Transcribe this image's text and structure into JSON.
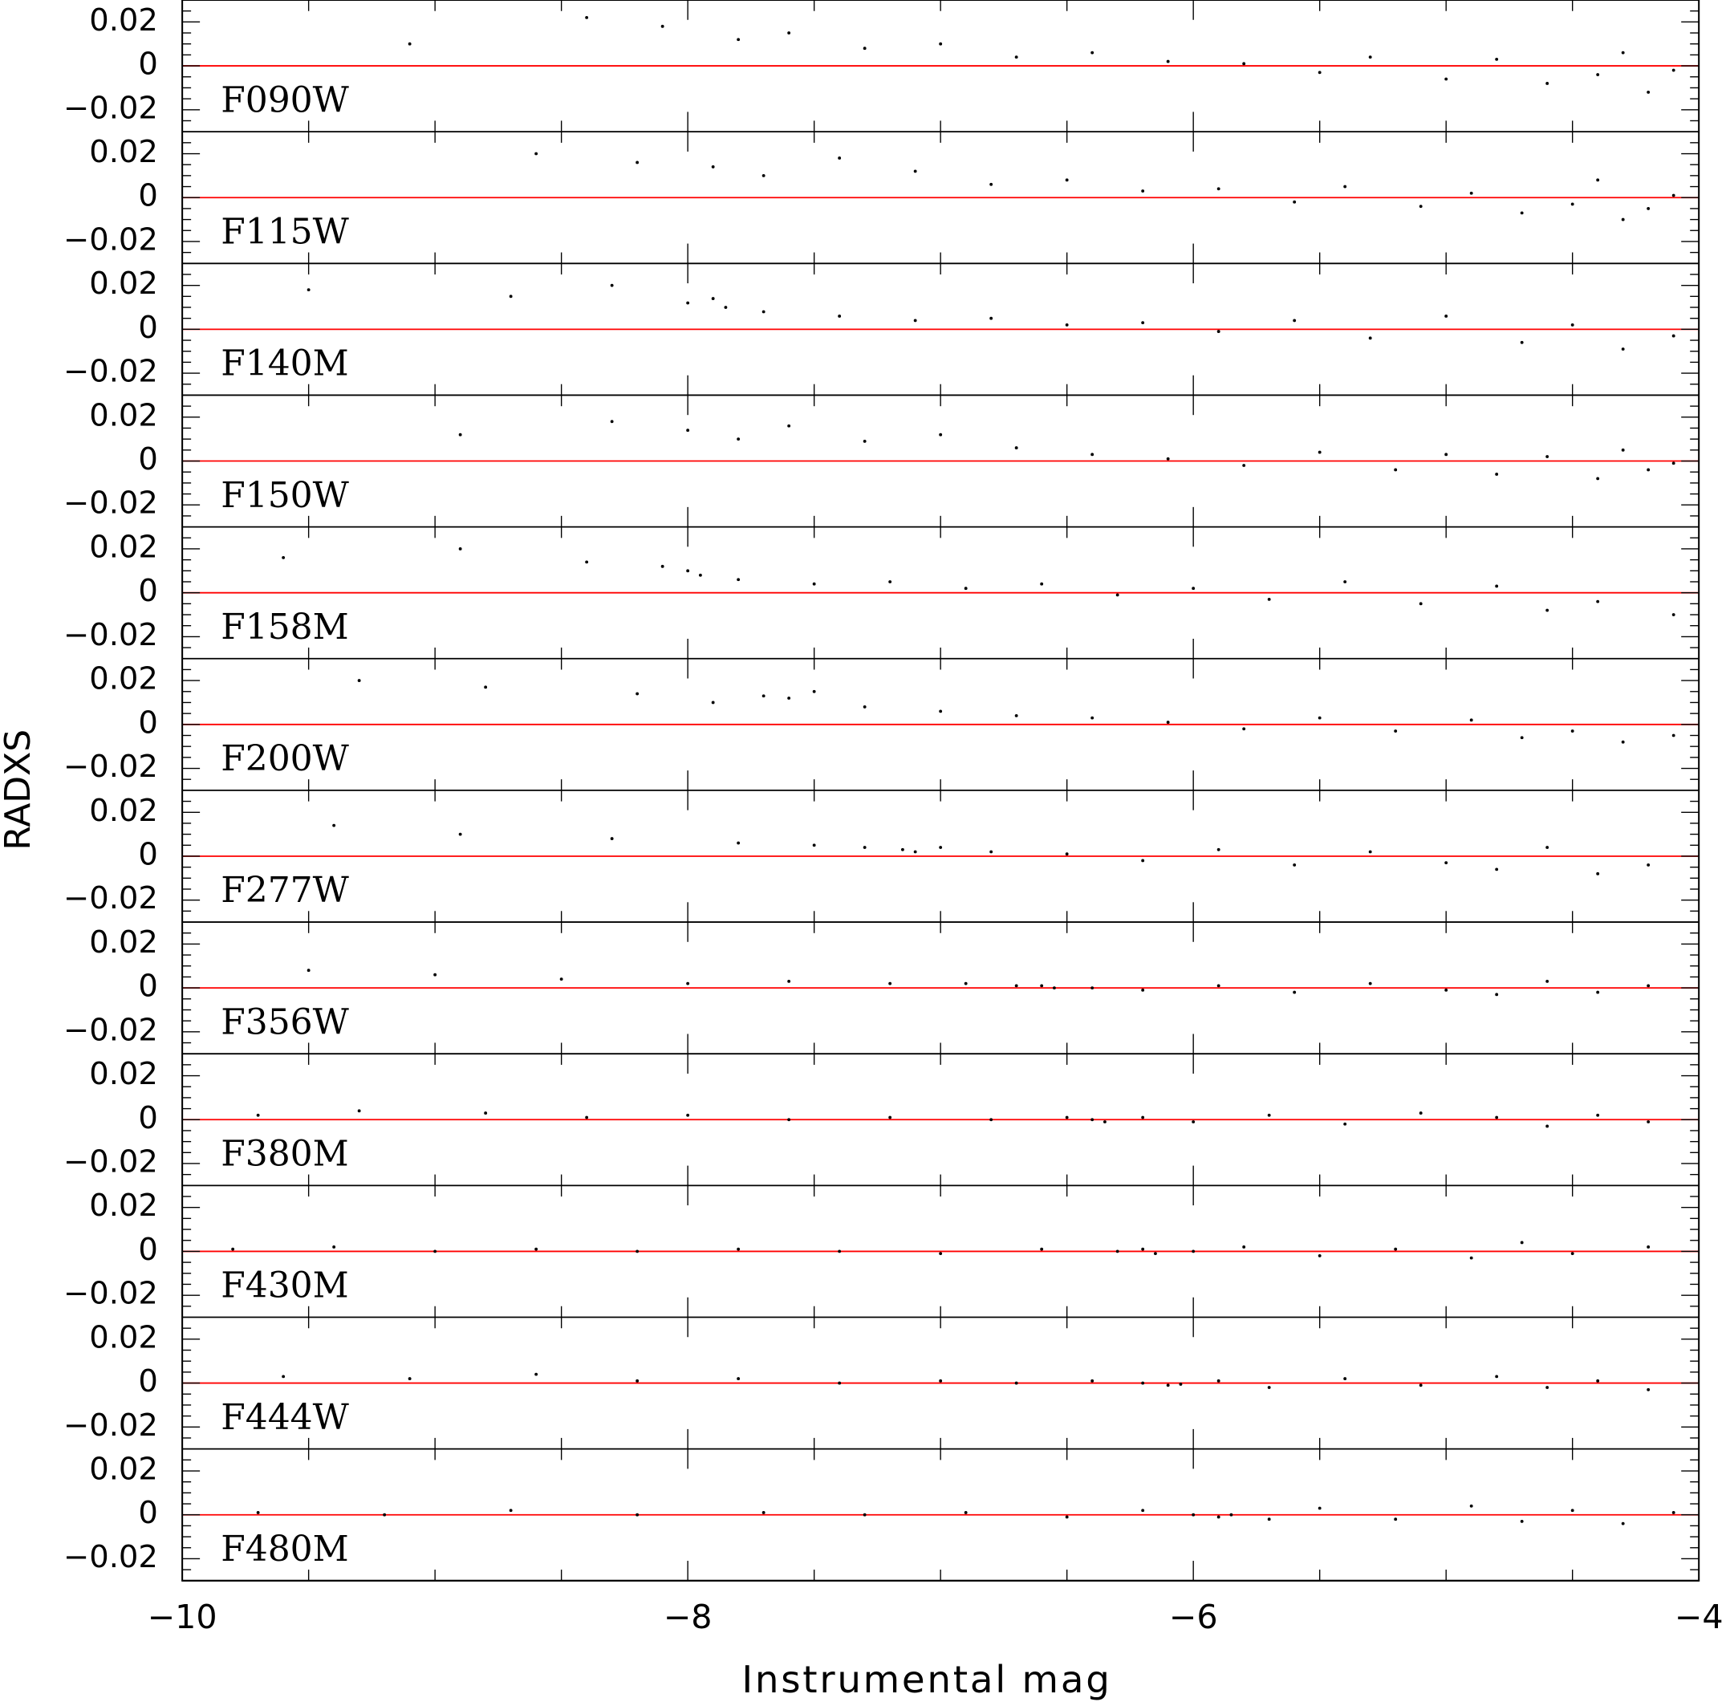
{
  "chart_data": {
    "type": "scatter",
    "x_label": "Instrumental mag",
    "y_label": "RADXS",
    "xlim": [
      -10,
      -4
    ],
    "xticks": [
      {
        "value": -10,
        "label": "−10"
      },
      {
        "value": -8,
        "label": "−8"
      },
      {
        "value": -6,
        "label": "−6"
      },
      {
        "value": -4,
        "label": "−4"
      }
    ],
    "xminorticks": [
      -9.5,
      -9,
      -8.5,
      -7.5,
      -7,
      -6.5,
      -5.5,
      -5,
      -4.5
    ],
    "ylim": [
      -0.03,
      0.03
    ],
    "yticks": [
      {
        "value": -0.02,
        "label": "−0.02"
      },
      0,
      0.02
    ],
    "yminorticks": [
      -0.025,
      -0.015,
      -0.01,
      -0.005,
      0.005,
      0.01,
      0.015,
      0.025
    ],
    "point_color": "#000000",
    "reference_line": {
      "value": 0,
      "color": "#ff0000"
    },
    "panels": [
      {
        "name": "F090W",
        "x": [
          -9.1,
          -8.4,
          -8.1,
          -7.8,
          -7.6,
          -7.3,
          -7.0,
          -6.7,
          -6.4,
          -6.1,
          -5.8,
          -5.5,
          -5.3,
          -5.0,
          -4.8,
          -4.6,
          -4.4,
          -4.3,
          -4.2,
          -4.1
        ],
        "y": [
          0.01,
          0.022,
          0.018,
          0.012,
          0.015,
          0.008,
          0.01,
          0.004,
          0.006,
          0.002,
          0.001,
          -0.003,
          0.004,
          -0.006,
          0.003,
          -0.008,
          -0.004,
          0.006,
          -0.012,
          -0.002
        ]
      },
      {
        "name": "F115W",
        "x": [
          -8.6,
          -8.2,
          -7.9,
          -7.7,
          -7.4,
          -7.1,
          -6.8,
          -6.5,
          -6.2,
          -5.9,
          -5.6,
          -5.4,
          -5.1,
          -4.9,
          -4.7,
          -4.5,
          -4.4,
          -4.3,
          -4.2,
          -4.1
        ],
        "y": [
          0.02,
          0.016,
          0.014,
          0.01,
          0.018,
          0.012,
          0.006,
          0.008,
          0.003,
          0.004,
          -0.002,
          0.005,
          -0.004,
          0.002,
          -0.007,
          -0.003,
          0.008,
          -0.01,
          -0.005,
          0.001
        ]
      },
      {
        "name": "F140M",
        "x": [
          -9.5,
          -8.7,
          -8.3,
          -8.0,
          -7.9,
          -7.85,
          -7.7,
          -7.4,
          -7.1,
          -6.8,
          -6.5,
          -6.2,
          -5.9,
          -5.6,
          -5.3,
          -5.0,
          -4.7,
          -4.5,
          -4.3,
          -4.1
        ],
        "y": [
          0.018,
          0.015,
          0.02,
          0.012,
          0.014,
          0.01,
          0.008,
          0.006,
          0.004,
          0.005,
          0.002,
          0.003,
          -0.001,
          0.004,
          -0.004,
          0.006,
          -0.006,
          0.002,
          -0.009,
          -0.003
        ]
      },
      {
        "name": "F150W",
        "x": [
          -8.9,
          -8.3,
          -8.0,
          -7.8,
          -7.6,
          -7.3,
          -7.0,
          -6.7,
          -6.4,
          -6.1,
          -5.8,
          -5.5,
          -5.2,
          -5.0,
          -4.8,
          -4.6,
          -4.4,
          -4.3,
          -4.2,
          -4.1
        ],
        "y": [
          0.012,
          0.018,
          0.014,
          0.01,
          0.016,
          0.009,
          0.012,
          0.006,
          0.003,
          0.001,
          -0.002,
          0.004,
          -0.004,
          0.003,
          -0.006,
          0.002,
          -0.008,
          0.005,
          -0.004,
          -0.001
        ]
      },
      {
        "name": "F158M",
        "x": [
          -9.6,
          -8.9,
          -8.4,
          -8.1,
          -8.0,
          -7.95,
          -7.8,
          -7.5,
          -7.2,
          -6.9,
          -6.6,
          -6.3,
          -6.0,
          -5.7,
          -5.4,
          -5.1,
          -4.8,
          -4.6,
          -4.4,
          -4.1
        ],
        "y": [
          0.016,
          0.02,
          0.014,
          0.012,
          0.01,
          0.008,
          0.006,
          0.004,
          0.005,
          0.002,
          0.004,
          -0.001,
          0.002,
          -0.003,
          0.005,
          -0.005,
          0.003,
          -0.008,
          -0.004,
          -0.01
        ]
      },
      {
        "name": "F200W",
        "x": [
          -9.3,
          -8.8,
          -8.2,
          -7.9,
          -7.7,
          -7.6,
          -7.5,
          -7.3,
          -7.0,
          -6.7,
          -6.4,
          -6.1,
          -5.8,
          -5.5,
          -5.2,
          -4.9,
          -4.7,
          -4.5,
          -4.3,
          -4.1
        ],
        "y": [
          0.02,
          0.017,
          0.014,
          0.01,
          0.013,
          0.012,
          0.015,
          0.008,
          0.006,
          0.004,
          0.003,
          0.001,
          -0.002,
          0.003,
          -0.003,
          0.002,
          -0.006,
          -0.003,
          -0.008,
          -0.005
        ]
      },
      {
        "name": "F277W",
        "x": [
          -9.4,
          -8.9,
          -8.3,
          -7.8,
          -7.5,
          -7.3,
          -7.15,
          -7.1,
          -7.0,
          -6.8,
          -6.5,
          -6.2,
          -5.9,
          -5.6,
          -5.3,
          -5.0,
          -4.8,
          -4.6,
          -4.4,
          -4.2
        ],
        "y": [
          0.014,
          0.01,
          0.008,
          0.006,
          0.005,
          0.004,
          0.003,
          0.002,
          0.004,
          0.002,
          0.001,
          -0.002,
          0.003,
          -0.004,
          0.002,
          -0.003,
          -0.006,
          0.004,
          -0.008,
          -0.004
        ]
      },
      {
        "name": "F356W",
        "x": [
          -9.5,
          -9.0,
          -8.5,
          -8.0,
          -7.6,
          -7.2,
          -6.9,
          -6.7,
          -6.6,
          -6.55,
          -6.4,
          -6.2,
          -5.9,
          -5.6,
          -5.3,
          -5.0,
          -4.8,
          -4.6,
          -4.4,
          -4.2
        ],
        "y": [
          0.008,
          0.006,
          0.004,
          0.002,
          0.003,
          0.002,
          0.002,
          0.001,
          0.001,
          0.0,
          0.0,
          -0.001,
          0.001,
          -0.002,
          0.002,
          -0.001,
          -0.003,
          0.003,
          -0.002,
          0.001
        ]
      },
      {
        "name": "F380M",
        "x": [
          -9.7,
          -9.3,
          -8.8,
          -8.4,
          -8.0,
          -7.6,
          -7.2,
          -6.8,
          -6.5,
          -6.4,
          -6.35,
          -6.2,
          -6.0,
          -5.7,
          -5.4,
          -5.1,
          -4.8,
          -4.6,
          -4.4,
          -4.2
        ],
        "y": [
          0.002,
          0.004,
          0.003,
          0.001,
          0.002,
          0.0,
          0.001,
          0.0,
          0.001,
          0.0,
          -0.001,
          0.001,
          -0.001,
          0.002,
          -0.002,
          0.003,
          0.001,
          -0.003,
          0.002,
          -0.001
        ]
      },
      {
        "name": "F430M",
        "x": [
          -9.8,
          -9.4,
          -9.0,
          -8.6,
          -8.2,
          -7.8,
          -7.4,
          -7.0,
          -6.6,
          -6.3,
          -6.2,
          -6.15,
          -6.0,
          -5.8,
          -5.5,
          -5.2,
          -4.9,
          -4.7,
          -4.5,
          -4.2
        ],
        "y": [
          0.001,
          0.002,
          0.0,
          0.001,
          0.0,
          0.001,
          0.0,
          -0.001,
          0.001,
          0.0,
          0.001,
          -0.001,
          0.0,
          0.002,
          -0.002,
          0.001,
          -0.003,
          0.004,
          -0.001,
          0.002
        ]
      },
      {
        "name": "F444W",
        "x": [
          -9.6,
          -9.1,
          -8.6,
          -8.2,
          -7.8,
          -7.4,
          -7.0,
          -6.7,
          -6.4,
          -6.2,
          -6.1,
          -6.05,
          -5.9,
          -5.7,
          -5.4,
          -5.1,
          -4.8,
          -4.6,
          -4.4,
          -4.2
        ],
        "y": [
          0.003,
          0.002,
          0.004,
          0.001,
          0.002,
          0.0,
          0.001,
          0.0,
          0.001,
          0.0,
          -0.001,
          -0.0005,
          0.001,
          -0.002,
          0.002,
          -0.001,
          0.003,
          -0.002,
          0.001,
          -0.003
        ]
      },
      {
        "name": "F480M",
        "x": [
          -9.7,
          -9.2,
          -8.7,
          -8.2,
          -7.7,
          -7.3,
          -6.9,
          -6.5,
          -6.2,
          -6.0,
          -5.9,
          -5.85,
          -5.7,
          -5.5,
          -5.2,
          -4.9,
          -4.7,
          -4.5,
          -4.3,
          -4.1
        ],
        "y": [
          0.001,
          0.0,
          0.002,
          0.0,
          0.001,
          0.0,
          0.001,
          -0.001,
          0.002,
          0.0,
          -0.001,
          0.0,
          -0.002,
          0.003,
          -0.002,
          0.004,
          -0.003,
          0.002,
          -0.004,
          0.001
        ]
      }
    ]
  }
}
